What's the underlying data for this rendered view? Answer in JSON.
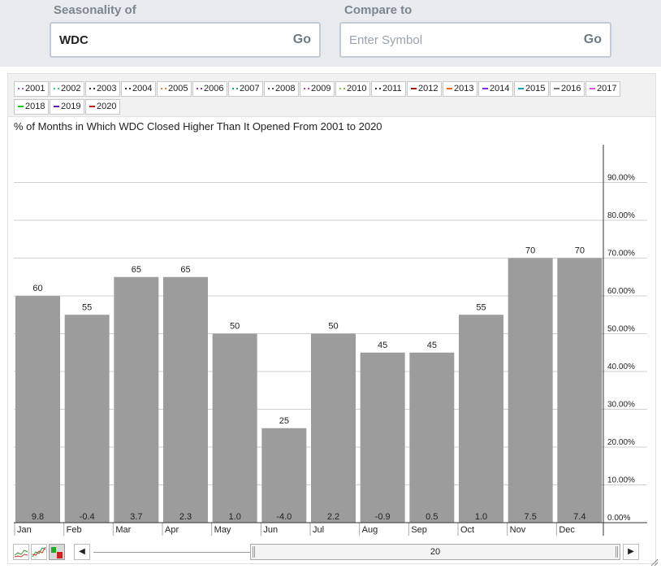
{
  "form": {
    "seasonality_label": "Seasonality of",
    "symbol_value": "WDC",
    "go_label": "Go",
    "compare_label": "Compare to",
    "compare_placeholder": "Enter Symbol",
    "compare_go_label": "Go"
  },
  "legend": [
    {
      "label": "2001",
      "color": "#9b59b6",
      "style": "dot"
    },
    {
      "label": "2002",
      "color": "#2ecc71",
      "style": "dot"
    },
    {
      "label": "2003",
      "color": "#333333",
      "style": "dot"
    },
    {
      "label": "2004",
      "color": "#333333",
      "style": "dot"
    },
    {
      "label": "2005",
      "color": "#e67e22",
      "style": "dot"
    },
    {
      "label": "2006",
      "color": "#8e44ad",
      "style": "dot"
    },
    {
      "label": "2007",
      "color": "#16a085",
      "style": "dot"
    },
    {
      "label": "2008",
      "color": "#555555",
      "style": "dot"
    },
    {
      "label": "2009",
      "color": "#c0399b",
      "style": "dot"
    },
    {
      "label": "2010",
      "color": "#7fc241",
      "style": "dot"
    },
    {
      "label": "2011",
      "color": "#333333",
      "style": "dot"
    },
    {
      "label": "2012",
      "color": "#a01515",
      "style": "solid"
    },
    {
      "label": "2013",
      "color": "#e8641b",
      "style": "solid"
    },
    {
      "label": "2014",
      "color": "#8a2be2",
      "style": "solid"
    },
    {
      "label": "2015",
      "color": "#1a9bc7",
      "style": "solid"
    },
    {
      "label": "2016",
      "color": "#777777",
      "style": "solid"
    },
    {
      "label": "2017",
      "color": "#e14fd8",
      "style": "solid"
    },
    {
      "label": "2018",
      "color": "#22c322",
      "style": "solid"
    },
    {
      "label": "2019",
      "color": "#5a19b8",
      "style": "solid"
    },
    {
      "label": "2020",
      "color": "#c41a1a",
      "style": "solid"
    }
  ],
  "chart_data": {
    "type": "bar",
    "title": "% of Months in Which WDC Closed Higher Than It Opened From 2001 to 2020",
    "categories": [
      "Jan",
      "Feb",
      "Mar",
      "Apr",
      "May",
      "Jun",
      "Jul",
      "Aug",
      "Sep",
      "Oct",
      "Nov",
      "Dec"
    ],
    "values": [
      60,
      55,
      65,
      65,
      50,
      25,
      50,
      45,
      45,
      55,
      70,
      70
    ],
    "bar_labels": [
      "60",
      "55",
      "65",
      "65",
      "50",
      "25",
      "50",
      "45",
      "45",
      "55",
      "70",
      "70"
    ],
    "bottom_labels": [
      "9.8",
      "-0.4",
      "3.7",
      "2.3",
      "1.0",
      "-4.0",
      "2.2",
      "-0.9",
      "0.5",
      "1.0",
      "7.5",
      "7.4"
    ],
    "y_ticks": [
      "0.00%",
      "10.00%",
      "20.00%",
      "30.00%",
      "40.00%",
      "50.00%",
      "60.00%",
      "70.00%",
      "80.00%",
      "90.00%"
    ],
    "ylim": [
      0,
      100
    ],
    "axis_position": "right",
    "grid": true,
    "bar_color": "#9c9c9c"
  },
  "navigator": {
    "range_label": "20",
    "left_arrow": "◀",
    "right_arrow": "▶"
  }
}
